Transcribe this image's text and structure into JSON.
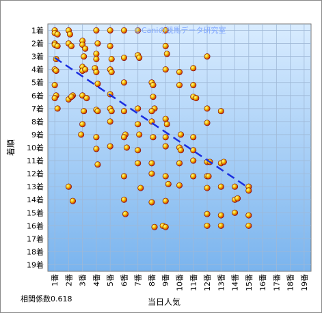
{
  "chart_data": {
    "type": "scatter",
    "watermark": "©Caniの競馬データ研究室",
    "xlabel": "当日人気",
    "ylabel": "着順",
    "note": "相関係数0.618",
    "x_ticks": [
      "1番",
      "2番",
      "3番",
      "4番",
      "5番",
      "6番",
      "7番",
      "8番",
      "9番",
      "10番",
      "11番",
      "12番",
      "13番",
      "14番",
      "15番",
      "16番",
      "17番",
      "18番",
      "19番"
    ],
    "y_ticks": [
      "1着",
      "2着",
      "3着",
      "4着",
      "5着",
      "6着",
      "7着",
      "8着",
      "9着",
      "10着",
      "11着",
      "12着",
      "13着",
      "14着",
      "15着",
      "16着",
      "17着",
      "18着",
      "19着"
    ],
    "xlim": [
      0.5,
      19.5
    ],
    "ylim": [
      0.5,
      19.5
    ],
    "grid": true,
    "colors": {
      "plot_bg_top": "#d9ecff",
      "plot_bg_bottom": "#7ab4ee",
      "grid": "#9fb8d6",
      "point": "#e09a00",
      "point_edge": "#c01010",
      "trend": "#1a2ee0"
    },
    "trendline": {
      "x": [
        1,
        15
      ],
      "y": [
        3.1,
        13.1
      ]
    },
    "points": [
      [
        1,
        1
      ],
      [
        1,
        1.2
      ],
      [
        1,
        2
      ],
      [
        1,
        2.1
      ],
      [
        1.2,
        1.3
      ],
      [
        1.2,
        2.2
      ],
      [
        1.1,
        3.2
      ],
      [
        1,
        4
      ],
      [
        1.1,
        4.1
      ],
      [
        1,
        5.2
      ],
      [
        1.1,
        6
      ],
      [
        1,
        6.2
      ],
      [
        1.2,
        7
      ],
      [
        2,
        1
      ],
      [
        2.1,
        1.3
      ],
      [
        2,
        2
      ],
      [
        2.2,
        2.2
      ],
      [
        2.3,
        6
      ],
      [
        2,
        6.3
      ],
      [
        2.2,
        6.1
      ],
      [
        2,
        13
      ],
      [
        2.3,
        14.1
      ],
      [
        3,
        1.8
      ],
      [
        3,
        2.1
      ],
      [
        3.2,
        2.4
      ],
      [
        3.1,
        3
      ],
      [
        3,
        3.8
      ],
      [
        3,
        4.1
      ],
      [
        3.2,
        4
      ],
      [
        3,
        6
      ],
      [
        3.3,
        6.2
      ],
      [
        3.1,
        7.2
      ],
      [
        3,
        8.2
      ],
      [
        2.9,
        9
      ],
      [
        4,
        1
      ],
      [
        4.1,
        2
      ],
      [
        4,
        2.8
      ],
      [
        4,
        3.2
      ],
      [
        3.9,
        3.9
      ],
      [
        4,
        4.2
      ],
      [
        4.1,
        5.1
      ],
      [
        4,
        7.1
      ],
      [
        4.1,
        7.2
      ],
      [
        4,
        9.2
      ],
      [
        4,
        10.1
      ],
      [
        4.1,
        11.3
      ],
      [
        5,
        1
      ],
      [
        5,
        2.2
      ],
      [
        5.1,
        3.2
      ],
      [
        5,
        4
      ],
      [
        5.1,
        4.2
      ],
      [
        5,
        5.9
      ],
      [
        5,
        7
      ],
      [
        5.1,
        7.2
      ],
      [
        5,
        8
      ],
      [
        5,
        9.9
      ],
      [
        6,
        1
      ],
      [
        6,
        3.1
      ],
      [
        6,
        5
      ],
      [
        6,
        7.2
      ],
      [
        6.1,
        9
      ],
      [
        6,
        9.2
      ],
      [
        6.2,
        10
      ],
      [
        6,
        12.2
      ],
      [
        6,
        14
      ],
      [
        6.1,
        15.1
      ],
      [
        7,
        1
      ],
      [
        7,
        2.9
      ],
      [
        7.1,
        3.1
      ],
      [
        7,
        7
      ],
      [
        7,
        8.2
      ],
      [
        7.1,
        9
      ],
      [
        7,
        10.2
      ],
      [
        7,
        11.2
      ],
      [
        7.2,
        13.1
      ],
      [
        8,
        5
      ],
      [
        8.1,
        5.2
      ],
      [
        8.1,
        6.1
      ],
      [
        8.2,
        7
      ],
      [
        8,
        7.2
      ],
      [
        8,
        8
      ],
      [
        8.1,
        9.2
      ],
      [
        8,
        11.2
      ],
      [
        8,
        12
      ],
      [
        8,
        14.2
      ],
      [
        8.2,
        16.1
      ],
      [
        9,
        1
      ],
      [
        9,
        2.2
      ],
      [
        9.1,
        2.8
      ],
      [
        9,
        4
      ],
      [
        9,
        7.8
      ],
      [
        9.1,
        8.2
      ],
      [
        9,
        9.2
      ],
      [
        9,
        9.9
      ],
      [
        9,
        12.2
      ],
      [
        9.2,
        12.8
      ],
      [
        9,
        14.1
      ],
      [
        8.8,
        16
      ],
      [
        9,
        16.1
      ],
      [
        10,
        4.2
      ],
      [
        10,
        5.2
      ],
      [
        10.1,
        9
      ],
      [
        10,
        10
      ],
      [
        10.1,
        10.2
      ],
      [
        10,
        11.2
      ],
      [
        10,
        12.9
      ],
      [
        11,
        3.9
      ],
      [
        11,
        5.2
      ],
      [
        11,
        6.1
      ],
      [
        11.2,
        6.2
      ],
      [
        11,
        9.2
      ],
      [
        11,
        10.2
      ],
      [
        11,
        11
      ],
      [
        11,
        12.2
      ],
      [
        12,
        3
      ],
      [
        12,
        7
      ],
      [
        12,
        8.1
      ],
      [
        12,
        11.1
      ],
      [
        12.2,
        11.1
      ],
      [
        12,
        12.2
      ],
      [
        12.1,
        12.2
      ],
      [
        12,
        13.1
      ],
      [
        12,
        15.1
      ],
      [
        12,
        16
      ],
      [
        13,
        7.2
      ],
      [
        13,
        11.2
      ],
      [
        13.2,
        11.1
      ],
      [
        13,
        13
      ],
      [
        13,
        15.2
      ],
      [
        13,
        16
      ],
      [
        14,
        13
      ],
      [
        14,
        14
      ],
      [
        14.2,
        13.9
      ],
      [
        14,
        15
      ],
      [
        15,
        13
      ],
      [
        15,
        13.3
      ],
      [
        15,
        15.2
      ],
      [
        15,
        16
      ]
    ]
  }
}
